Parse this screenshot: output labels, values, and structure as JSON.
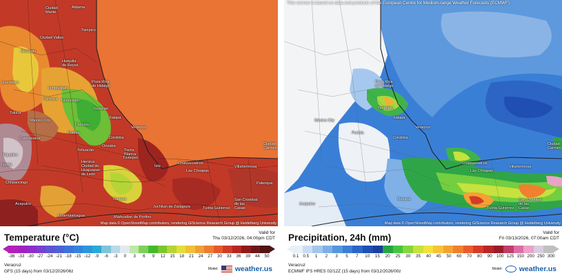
{
  "left": {
    "map": {
      "cities": [
        {
          "name": "Ciudad\nMante",
          "id": "ciudad-mante"
        },
        {
          "name": "Aldama",
          "id": "aldama"
        },
        {
          "name": "Tampico",
          "id": "tampico"
        },
        {
          "name": "Ciudad Valles",
          "id": "ciudad-valles"
        },
        {
          "name": "Rioverde",
          "id": "rioverde"
        },
        {
          "name": "Huejutla\nde Reyes",
          "id": "huejutla"
        },
        {
          "name": "Querétaro",
          "id": "queretaro"
        },
        {
          "name": "Ixmiquilpan",
          "id": "ixmiquilpan"
        },
        {
          "name": "Poza Rica\nde Hidalgo",
          "id": "poza-rica"
        },
        {
          "name": "Tulancingo",
          "id": "tulancingo"
        },
        {
          "name": "Pachuca",
          "id": "pachuca"
        },
        {
          "name": "Teziutlan",
          "id": "teziutlan"
        },
        {
          "name": "Toluca",
          "id": "toluca"
        },
        {
          "name": "Mexico City",
          "id": "mexico-city"
        },
        {
          "name": "Tlaxcala",
          "id": "tlaxcala"
        },
        {
          "name": "Xalapa",
          "id": "xalapa"
        },
        {
          "name": "Puebla",
          "id": "puebla"
        },
        {
          "name": "Cuernavaca",
          "id": "cuernavaca"
        },
        {
          "name": "Veracruz",
          "id": "veracruz"
        },
        {
          "name": "Cordoba",
          "id": "cordoba"
        },
        {
          "name": "Orizaba",
          "id": "orizaba"
        },
        {
          "name": "Tehuacán",
          "id": "tehuacan"
        },
        {
          "name": "Tierra\nBlanca",
          "id": "tierra-blanca"
        },
        {
          "name": "Heroica\nCiudad de\nHuajuapan\nde León",
          "id": "huajuapan"
        },
        {
          "name": "Iguala",
          "id": "iguala"
        },
        {
          "name": "Tuxtepec",
          "id": "tuxtepec"
        },
        {
          "name": "Isla",
          "id": "isla"
        },
        {
          "name": "Coatzacoalcos",
          "id": "coatzacoalcos"
        },
        {
          "name": "Villahermosa",
          "id": "villahermosa"
        },
        {
          "name": "Las Choapas",
          "id": "las-choapas"
        },
        {
          "name": "Ciudad\nCarmen",
          "id": "ciudad-carmen"
        },
        {
          "name": "Chilpancingo",
          "id": "chilpancingo"
        },
        {
          "name": "Oaxaca",
          "id": "oaxaca"
        },
        {
          "name": "Palenque",
          "id": "palenque"
        },
        {
          "name": "Acapulco",
          "id": "acapulco"
        },
        {
          "name": "Juchitan de Zaragoza",
          "id": "juchitan"
        },
        {
          "name": "San Cristobal\nde las\nCasas",
          "id": "san-cristobal"
        },
        {
          "name": "Tuxtla Gutierrez",
          "id": "tuxtla"
        },
        {
          "name": "Coamuialcagua",
          "id": "coamuialcagua"
        },
        {
          "name": "Miahuatlan de Porfirio",
          "id": "miahuatlan"
        },
        {
          "name": "Tejupilco",
          "id": "tejupilco"
        }
      ],
      "attribution": "Map data © OpenStreetMap contributors, rendering GIScience Research Group @ Heidelberg University"
    },
    "legend": {
      "title": "Temperature (°C)",
      "valid_label": "Valid for",
      "valid_time": "Thu 03/12/2026, 04:00pm CDT",
      "ticks": [
        "-36",
        "-33",
        "-30",
        "-27",
        "-24",
        "-21",
        "-18",
        "-15",
        "-12",
        "-9",
        "-6",
        "-3",
        "0",
        "3",
        "6",
        "9",
        "12",
        "15",
        "18",
        "21",
        "24",
        "27",
        "30",
        "33",
        "36",
        "39",
        "44",
        "50"
      ],
      "colors": [
        "#b51fb9",
        "#a022c0",
        "#8e2fc9",
        "#7641d0",
        "#5d55d4",
        "#4b63d6",
        "#3f72d9",
        "#3483dc",
        "#2c96dd",
        "#28aad8",
        "#7fc3d9",
        "#b8d9e6",
        "#e4e8ef",
        "#bfe8a6",
        "#7ed05a",
        "#43b92c",
        "#7bc630",
        "#b5d436",
        "#e3dd3b",
        "#f1c038",
        "#eea035",
        "#ea7f31",
        "#e35a2d",
        "#cf3b29",
        "#b52721",
        "#8f1a1a",
        "#6b1717",
        "#501414"
      ],
      "location": "Veracruz",
      "model_line": "GFS (15 days) from 03/12/2026/06z",
      "model_label": "Model:",
      "brand": "weather.us"
    }
  },
  "right": {
    "map": {
      "notice": "This service is based on data and products of the European Centre for Medium-range Weather Forecasts (ECMWF)",
      "attribution": "Map data © OpenStreetMap contributors, rendering GIScience Research Group @ Heidelberg University"
    },
    "legend": {
      "title": "Precipitation, 24h (mm)",
      "valid_label": "Valid for",
      "valid_time": "Fri 03/13/2026, 07:00am CDT",
      "ticks": [
        "0.1",
        "0.5",
        "1",
        "2",
        "3",
        "5",
        "7",
        "10",
        "15",
        "20",
        "25",
        "30",
        "35",
        "40",
        "45",
        "50",
        "60",
        "70",
        "80",
        "90",
        "100",
        "125",
        "150",
        "200",
        "250",
        "300"
      ],
      "colors": [
        "#e8f0f8",
        "#c9ddf2",
        "#a3c7ec",
        "#7cb0e5",
        "#5597de",
        "#3b7fd3",
        "#2c65c4",
        "#1f4fb2",
        "#1a3f9c",
        "#26a545",
        "#46c63f",
        "#85d63e",
        "#c6e23e",
        "#f3e23c",
        "#f7c337",
        "#f4a232",
        "#f0802e",
        "#e85d2c",
        "#d63b2a",
        "#b92628",
        "#981d2a",
        "#c13d6a",
        "#dc6ea3",
        "#e9a3c7",
        "#d9cde0",
        "#c0c0c0"
      ],
      "location": "Veracruz",
      "model_line": "ECMWF IFS HRES 02/12Z (15 days) from 03/12/2026/00z",
      "model_label": "Model:",
      "brand": "weather.us"
    }
  }
}
